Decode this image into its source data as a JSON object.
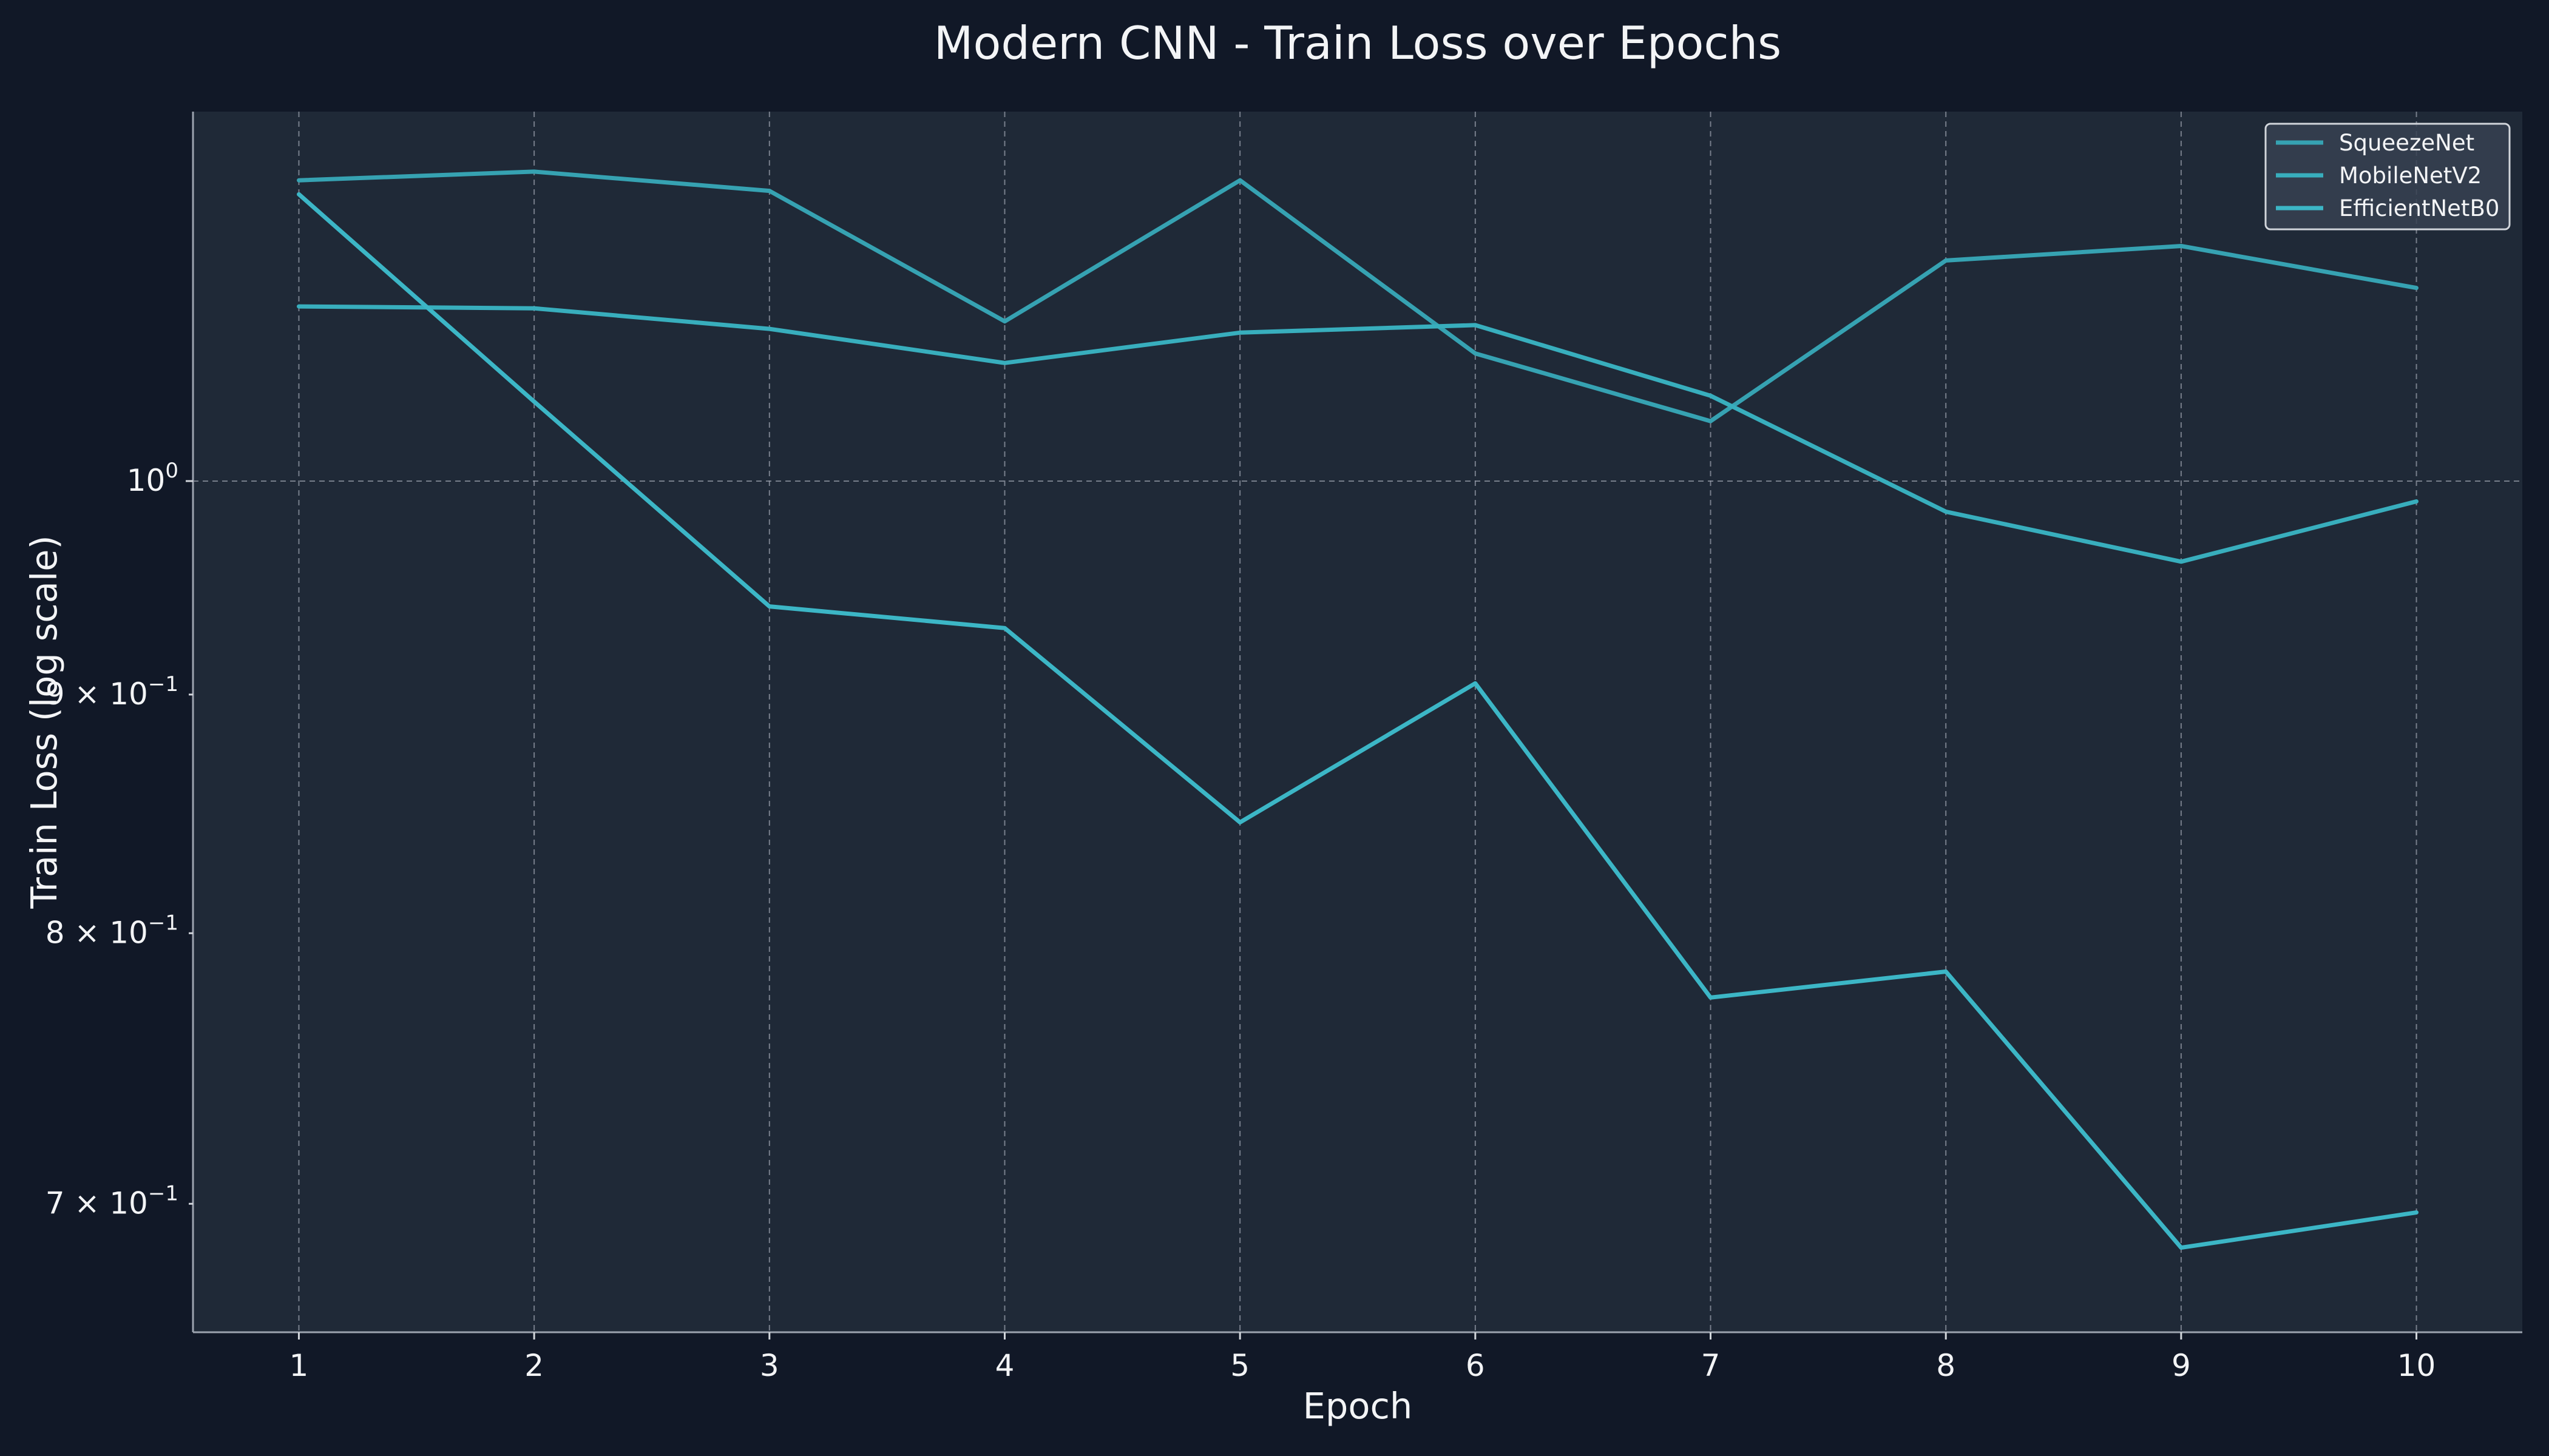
{
  "chart_data": {
    "type": "line",
    "title": "Modern CNN - Train Loss over Epochs",
    "xlabel": "Epoch",
    "ylabel": "Train Loss (log scale)",
    "x": [
      1,
      2,
      3,
      4,
      5,
      6,
      7,
      8,
      9,
      10
    ],
    "xlim": [
      0.55,
      10.45
    ],
    "ylim": [
      0.657,
      1.2
    ],
    "yscale": "log",
    "grid": true,
    "legend_position": "top-right",
    "x_ticks": [
      {
        "value": 1,
        "label": "1"
      },
      {
        "value": 2,
        "label": "2"
      },
      {
        "value": 3,
        "label": "3"
      },
      {
        "value": 4,
        "label": "4"
      },
      {
        "value": 5,
        "label": "5"
      },
      {
        "value": 6,
        "label": "6"
      },
      {
        "value": 7,
        "label": "7"
      },
      {
        "value": 8,
        "label": "8"
      },
      {
        "value": 9,
        "label": "9"
      },
      {
        "value": 10,
        "label": "10"
      }
    ],
    "y_ticks": [
      {
        "value": 1.0,
        "base": "10",
        "exp": "0",
        "major": true
      },
      {
        "value": 0.9,
        "base": "9 × 10",
        "exp": "−1",
        "major": false
      },
      {
        "value": 0.8,
        "base": "8 × 10",
        "exp": "−1",
        "major": false
      },
      {
        "value": 0.7,
        "base": "7 × 10",
        "exp": "−1",
        "major": false
      }
    ],
    "series": [
      {
        "name": "SqueezeNet",
        "color": "#36a2b2",
        "values": [
          1.16,
          1.165,
          1.154,
          1.082,
          1.16,
          1.065,
          1.03,
          1.115,
          1.123,
          1.1
        ]
      },
      {
        "name": "MobileNetV2",
        "color": "#38aebd",
        "values": [
          1.09,
          1.089,
          1.078,
          1.06,
          1.076,
          1.08,
          1.043,
          0.985,
          0.961,
          0.99
        ]
      },
      {
        "name": "EfficientNetB0",
        "color": "#3cb6c6",
        "values": [
          1.152,
          1.04,
          0.94,
          0.93,
          0.845,
          0.905,
          0.775,
          0.785,
          0.685,
          0.697
        ]
      }
    ]
  },
  "colors": {
    "background": "#111827",
    "plot_background": "#1f2937",
    "grid": "#9ca3af",
    "text": "#f3f4f6"
  }
}
